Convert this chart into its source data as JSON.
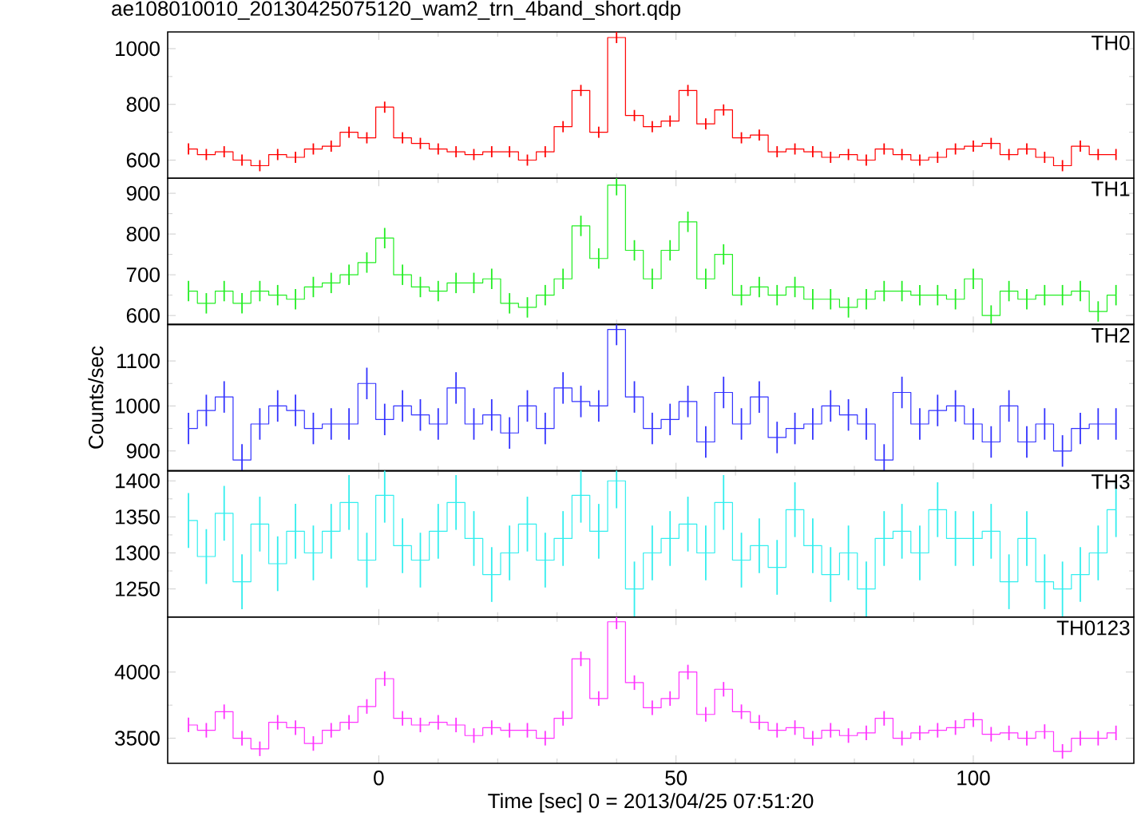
{
  "chart_data": [
    {
      "type": "step",
      "title": "ae108010010_20130425075120_wam2_trn_4band_short.qdp",
      "x": [
        -32,
        -29,
        -26,
        -23,
        -20,
        -17,
        -14,
        -11,
        -8,
        -5,
        -2,
        1,
        4,
        7,
        10,
        13,
        16,
        19,
        22,
        25,
        28,
        31,
        34,
        37,
        40,
        43,
        46,
        49,
        52,
        55,
        58,
        61,
        64,
        67,
        70,
        73,
        76,
        79,
        82,
        85,
        88,
        91,
        94,
        97,
        100,
        103,
        106,
        109,
        112,
        115,
        118,
        121,
        124
      ],
      "xlim": [
        -35.5,
        127
      ],
      "xticks": [
        0,
        50,
        100
      ],
      "ylim": [
        535,
        1060
      ],
      "yticks": [
        600,
        800,
        1000
      ],
      "tick_labels": "y",
      "series": [
        {
          "name": "TH0",
          "color": "#ff0000",
          "values": [
            640,
            620,
            630,
            600,
            580,
            620,
            610,
            640,
            650,
            700,
            680,
            790,
            680,
            660,
            640,
            630,
            620,
            630,
            630,
            600,
            630,
            720,
            850,
            700,
            1040,
            760,
            720,
            740,
            850,
            730,
            780,
            680,
            690,
            630,
            640,
            630,
            610,
            620,
            600,
            640,
            620,
            600,
            610,
            640,
            650,
            660,
            620,
            640,
            610,
            580,
            650,
            620,
            620
          ],
          "errors": [
            20,
            20,
            20,
            20,
            20,
            20,
            20,
            20,
            20,
            20,
            20,
            20,
            20,
            20,
            20,
            20,
            20,
            20,
            20,
            20,
            20,
            20,
            20,
            20,
            20,
            20,
            20,
            20,
            20,
            20,
            20,
            20,
            20,
            20,
            20,
            20,
            20,
            20,
            20,
            20,
            20,
            20,
            20,
            20,
            20,
            20,
            20,
            20,
            20,
            20,
            20,
            20,
            20
          ]
        }
      ]
    },
    {
      "type": "step",
      "x": [
        -32,
        -29,
        -26,
        -23,
        -20,
        -17,
        -14,
        -11,
        -8,
        -5,
        -2,
        1,
        4,
        7,
        10,
        13,
        16,
        19,
        22,
        25,
        28,
        31,
        34,
        37,
        40,
        43,
        46,
        49,
        52,
        55,
        58,
        61,
        64,
        67,
        70,
        73,
        76,
        79,
        82,
        85,
        88,
        91,
        94,
        97,
        100,
        103,
        106,
        109,
        112,
        115,
        118,
        121,
        124
      ],
      "xlim": [
        -35.5,
        127
      ],
      "xticks": [
        0,
        50,
        100
      ],
      "ylim": [
        578,
        937
      ],
      "yticks": [
        600,
        700,
        800,
        900
      ],
      "tick_labels": "y",
      "series": [
        {
          "name": "TH1",
          "color": "#22ee22",
          "values": [
            660,
            630,
            660,
            630,
            660,
            650,
            640,
            670,
            680,
            700,
            730,
            790,
            700,
            670,
            660,
            680,
            680,
            690,
            630,
            620,
            650,
            690,
            820,
            740,
            920,
            760,
            690,
            760,
            830,
            690,
            750,
            650,
            670,
            650,
            670,
            640,
            640,
            620,
            640,
            660,
            660,
            650,
            650,
            640,
            690,
            600,
            660,
            640,
            650,
            650,
            660,
            610,
            650
          ],
          "errors": [
            25,
            25,
            25,
            25,
            25,
            25,
            25,
            25,
            25,
            25,
            25,
            25,
            25,
            25,
            25,
            25,
            25,
            25,
            25,
            25,
            25,
            25,
            25,
            25,
            25,
            25,
            25,
            25,
            25,
            25,
            25,
            25,
            25,
            25,
            25,
            25,
            25,
            25,
            25,
            25,
            25,
            25,
            25,
            25,
            25,
            25,
            25,
            25,
            25,
            25,
            25,
            25,
            25
          ]
        }
      ]
    },
    {
      "type": "step",
      "ylabel": "Counts/sec",
      "x": [
        -32,
        -29,
        -26,
        -23,
        -20,
        -17,
        -14,
        -11,
        -8,
        -5,
        -2,
        1,
        4,
        7,
        10,
        13,
        16,
        19,
        22,
        25,
        28,
        31,
        34,
        37,
        40,
        43,
        46,
        49,
        52,
        55,
        58,
        61,
        64,
        67,
        70,
        73,
        76,
        79,
        82,
        85,
        88,
        91,
        94,
        97,
        100,
        103,
        106,
        109,
        112,
        115,
        118,
        121,
        124
      ],
      "xlim": [
        -35.5,
        127
      ],
      "xticks": [
        0,
        50,
        100
      ],
      "ylim": [
        856,
        1181
      ],
      "yticks": [
        900,
        1000,
        1100
      ],
      "tick_labels": "y",
      "series": [
        {
          "name": "TH2",
          "color": "#3333ff",
          "values": [
            950,
            990,
            1020,
            880,
            960,
            1000,
            990,
            950,
            960,
            960,
            1050,
            970,
            1000,
            980,
            960,
            1040,
            960,
            980,
            940,
            1000,
            950,
            1040,
            1010,
            1000,
            1170,
            1020,
            950,
            970,
            1010,
            920,
            1030,
            960,
            1020,
            930,
            950,
            960,
            1000,
            980,
            960,
            880,
            1030,
            960,
            990,
            1000,
            960,
            920,
            1000,
            920,
            960,
            900,
            950,
            960,
            960
          ],
          "errors": [
            35,
            35,
            35,
            35,
            35,
            35,
            35,
            35,
            35,
            35,
            35,
            35,
            35,
            35,
            35,
            35,
            35,
            35,
            35,
            35,
            35,
            35,
            35,
            35,
            35,
            35,
            35,
            35,
            35,
            35,
            35,
            35,
            35,
            35,
            35,
            35,
            35,
            35,
            35,
            35,
            35,
            35,
            35,
            35,
            35,
            35,
            35,
            35,
            35,
            35,
            35,
            35,
            35
          ]
        }
      ]
    },
    {
      "type": "step",
      "x": [
        -32,
        -29,
        -26,
        -23,
        -20,
        -17,
        -14,
        -11,
        -8,
        -5,
        -2,
        1,
        4,
        7,
        10,
        13,
        16,
        19,
        22,
        25,
        28,
        31,
        34,
        37,
        40,
        43,
        46,
        49,
        52,
        55,
        58,
        61,
        64,
        67,
        70,
        73,
        76,
        79,
        82,
        85,
        88,
        91,
        94,
        97,
        100,
        103,
        106,
        109,
        112,
        115,
        118,
        121,
        124
      ],
      "xlim": [
        -35.5,
        127
      ],
      "xticks": [
        0,
        50,
        100
      ],
      "ylim": [
        1211,
        1414
      ],
      "yticks": [
        1250,
        1300,
        1350,
        1400
      ],
      "tick_labels": "y",
      "series": [
        {
          "name": "TH3",
          "color": "#33eeee",
          "values": [
            1345,
            1295,
            1355,
            1260,
            1340,
            1285,
            1330,
            1300,
            1330,
            1370,
            1290,
            1380,
            1310,
            1290,
            1330,
            1370,
            1320,
            1270,
            1300,
            1340,
            1290,
            1320,
            1380,
            1330,
            1400,
            1250,
            1300,
            1320,
            1340,
            1300,
            1370,
            1290,
            1310,
            1280,
            1360,
            1310,
            1270,
            1300,
            1250,
            1320,
            1330,
            1300,
            1360,
            1320,
            1320,
            1330,
            1260,
            1320,
            1260,
            1250,
            1270,
            1300,
            1360
          ],
          "errors": [
            38,
            38,
            38,
            38,
            38,
            38,
            38,
            38,
            38,
            38,
            38,
            38,
            38,
            38,
            38,
            38,
            38,
            38,
            38,
            38,
            38,
            38,
            38,
            38,
            38,
            38,
            38,
            38,
            38,
            38,
            38,
            38,
            38,
            38,
            38,
            38,
            38,
            38,
            38,
            38,
            38,
            38,
            38,
            38,
            38,
            38,
            38,
            38,
            38,
            38,
            38,
            38,
            38
          ]
        }
      ]
    },
    {
      "type": "step",
      "xlabel": "Time [sec] 0 = 2013/04/25 07:51:20",
      "x": [
        -32,
        -29,
        -26,
        -23,
        -20,
        -17,
        -14,
        -11,
        -8,
        -5,
        -2,
        1,
        4,
        7,
        10,
        13,
        16,
        19,
        22,
        25,
        28,
        31,
        34,
        37,
        40,
        43,
        46,
        49,
        52,
        55,
        58,
        61,
        64,
        67,
        70,
        73,
        76,
        79,
        82,
        85,
        88,
        91,
        94,
        97,
        100,
        103,
        106,
        109,
        112,
        115,
        118,
        121,
        124
      ],
      "xlim": [
        -35.5,
        127
      ],
      "xticks": [
        0,
        50,
        100
      ],
      "ylim": [
        3310,
        4416
      ],
      "yticks": [
        3500,
        4000
      ],
      "series": [
        {
          "name": "TH0123",
          "color": "#ff33ff",
          "values": [
            3600,
            3560,
            3700,
            3500,
            3420,
            3620,
            3580,
            3460,
            3560,
            3620,
            3740,
            3950,
            3650,
            3600,
            3620,
            3600,
            3520,
            3580,
            3560,
            3560,
            3500,
            3650,
            4100,
            3800,
            4380,
            3920,
            3730,
            3800,
            4000,
            3680,
            3870,
            3700,
            3620,
            3560,
            3580,
            3500,
            3560,
            3520,
            3540,
            3650,
            3500,
            3540,
            3560,
            3580,
            3640,
            3530,
            3540,
            3500,
            3550,
            3400,
            3500,
            3500,
            3540
          ],
          "errors": [
            55,
            55,
            55,
            55,
            55,
            55,
            55,
            55,
            55,
            55,
            55,
            55,
            55,
            55,
            55,
            55,
            55,
            55,
            55,
            55,
            55,
            55,
            55,
            55,
            55,
            55,
            55,
            55,
            55,
            55,
            55,
            55,
            55,
            55,
            55,
            55,
            55,
            55,
            55,
            55,
            55,
            55,
            55,
            55,
            55,
            55,
            55,
            55,
            55,
            55,
            55,
            55,
            55
          ]
        }
      ]
    }
  ]
}
